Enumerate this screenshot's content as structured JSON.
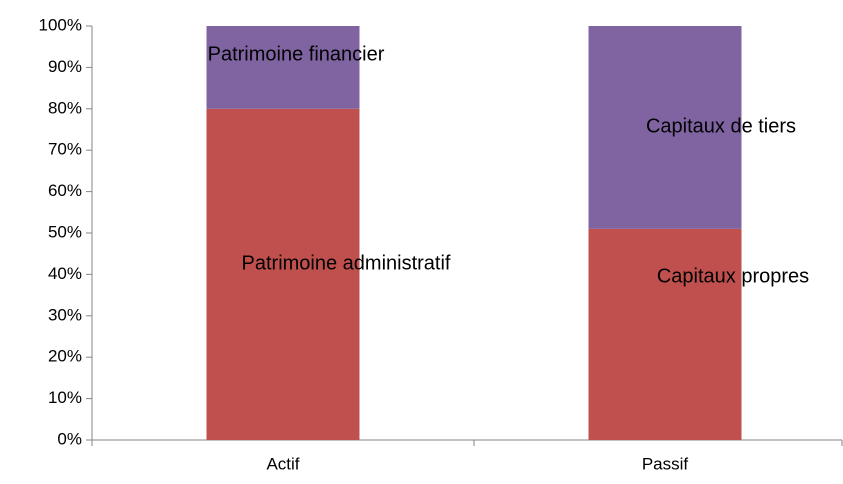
{
  "chart_data": {
    "type": "bar",
    "stacked": true,
    "categories": [
      "Actif",
      "Passif"
    ],
    "series": [
      {
        "color": "#c0504d",
        "values": [
          80,
          51
        ],
        "labels": [
          "Patrimoine administratif",
          "Capitaux propres"
        ]
      },
      {
        "color": "#8064a2",
        "values": [
          20,
          49
        ],
        "labels": [
          "Patrimoine financier",
          "Capitaux de tiers"
        ]
      }
    ],
    "ylim": [
      0,
      100
    ],
    "yticks": [
      {
        "value": 0,
        "label": "0%"
      },
      {
        "value": 10,
        "label": "10%"
      },
      {
        "value": 20,
        "label": "20%"
      },
      {
        "value": 30,
        "label": "30%"
      },
      {
        "value": 40,
        "label": "40%"
      },
      {
        "value": 50,
        "label": "50%"
      },
      {
        "value": 60,
        "label": "60%"
      },
      {
        "value": 70,
        "label": "70%"
      },
      {
        "value": 80,
        "label": "80%"
      },
      {
        "value": 90,
        "label": "90%"
      },
      {
        "value": 100,
        "label": "100%"
      }
    ],
    "grid": false
  }
}
